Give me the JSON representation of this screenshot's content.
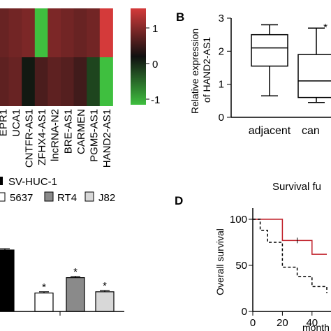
{
  "panels": {
    "B": "B",
    "D": "D"
  },
  "colors": {
    "heat_high": "#d43a3a",
    "heat_mid": "#101010",
    "heat_low": "#3fbf3f",
    "km_red": "#c0202a",
    "bar_black": "#000000"
  },
  "chart_data": [
    {
      "type": "heatmap",
      "panel": "A",
      "columns": [
        "EPR1",
        "UCA1",
        "CNTFR-AS1",
        "ZFHX4-AS1",
        "lncRNA-N2",
        "BRE-AS1",
        "CARMEN",
        "PGM5-AS1",
        "HAND2-AS1"
      ],
      "rows": 2,
      "values": [
        [
          0.45,
          0.5,
          0.55,
          -1.0,
          0.55,
          0.5,
          0.45,
          0.5,
          1.0
        ],
        [
          0.4,
          0.45,
          -0.05,
          0.3,
          0.4,
          0.35,
          0.25,
          -0.3,
          -1.0
        ]
      ],
      "colorbar": {
        "ticks": [
          "1",
          "0",
          "-1"
        ],
        "range": [
          -1,
          1
        ]
      }
    },
    {
      "type": "box",
      "panel": "B",
      "ylabel_line1": "Relative expression",
      "ylabel_line2": "of HAND2-AS1",
      "ylim": [
        0,
        3
      ],
      "yticks": [
        "0",
        "1",
        "2",
        "3"
      ],
      "categories": [
        "adjacent",
        "can"
      ],
      "boxes": [
        {
          "min": 0.65,
          "q1": 1.55,
          "median": 2.1,
          "q3": 2.5,
          "max": 2.8
        },
        {
          "min": 0.45,
          "q1": 0.6,
          "median": 1.1,
          "q3": 1.9,
          "max": 2.7
        }
      ],
      "annotation": "*"
    },
    {
      "type": "bar",
      "panel": "C",
      "legend": [
        "SV-HUC-1",
        "5637",
        "RT4",
        "J82"
      ],
      "categories": [
        "SV-HUC-1",
        "5637",
        "RT4",
        "J82"
      ],
      "values": [
        1.0,
        0.3,
        0.55,
        0.32
      ],
      "errors": [
        0.02,
        0.02,
        0.02,
        0.02
      ],
      "annotations": [
        "",
        "*",
        "*",
        "*"
      ]
    },
    {
      "type": "line",
      "panel": "D",
      "title": "Survival fu",
      "ylabel": "Overall survival",
      "xlabel": "month",
      "xlim": [
        0,
        50
      ],
      "ylim": [
        0,
        110
      ],
      "xticks": [
        "0",
        "20",
        "40"
      ],
      "yticks": [
        "0",
        "50",
        "100"
      ],
      "series": [
        {
          "style": "solid",
          "x": [
            0,
            10,
            20,
            40,
            50
          ],
          "y": [
            100,
            100,
            77,
            62,
            62
          ]
        },
        {
          "style": "dashed",
          "x": [
            0,
            5,
            10,
            20,
            30,
            40,
            50
          ],
          "y": [
            100,
            88,
            75,
            48,
            38,
            27,
            20
          ]
        }
      ]
    }
  ]
}
